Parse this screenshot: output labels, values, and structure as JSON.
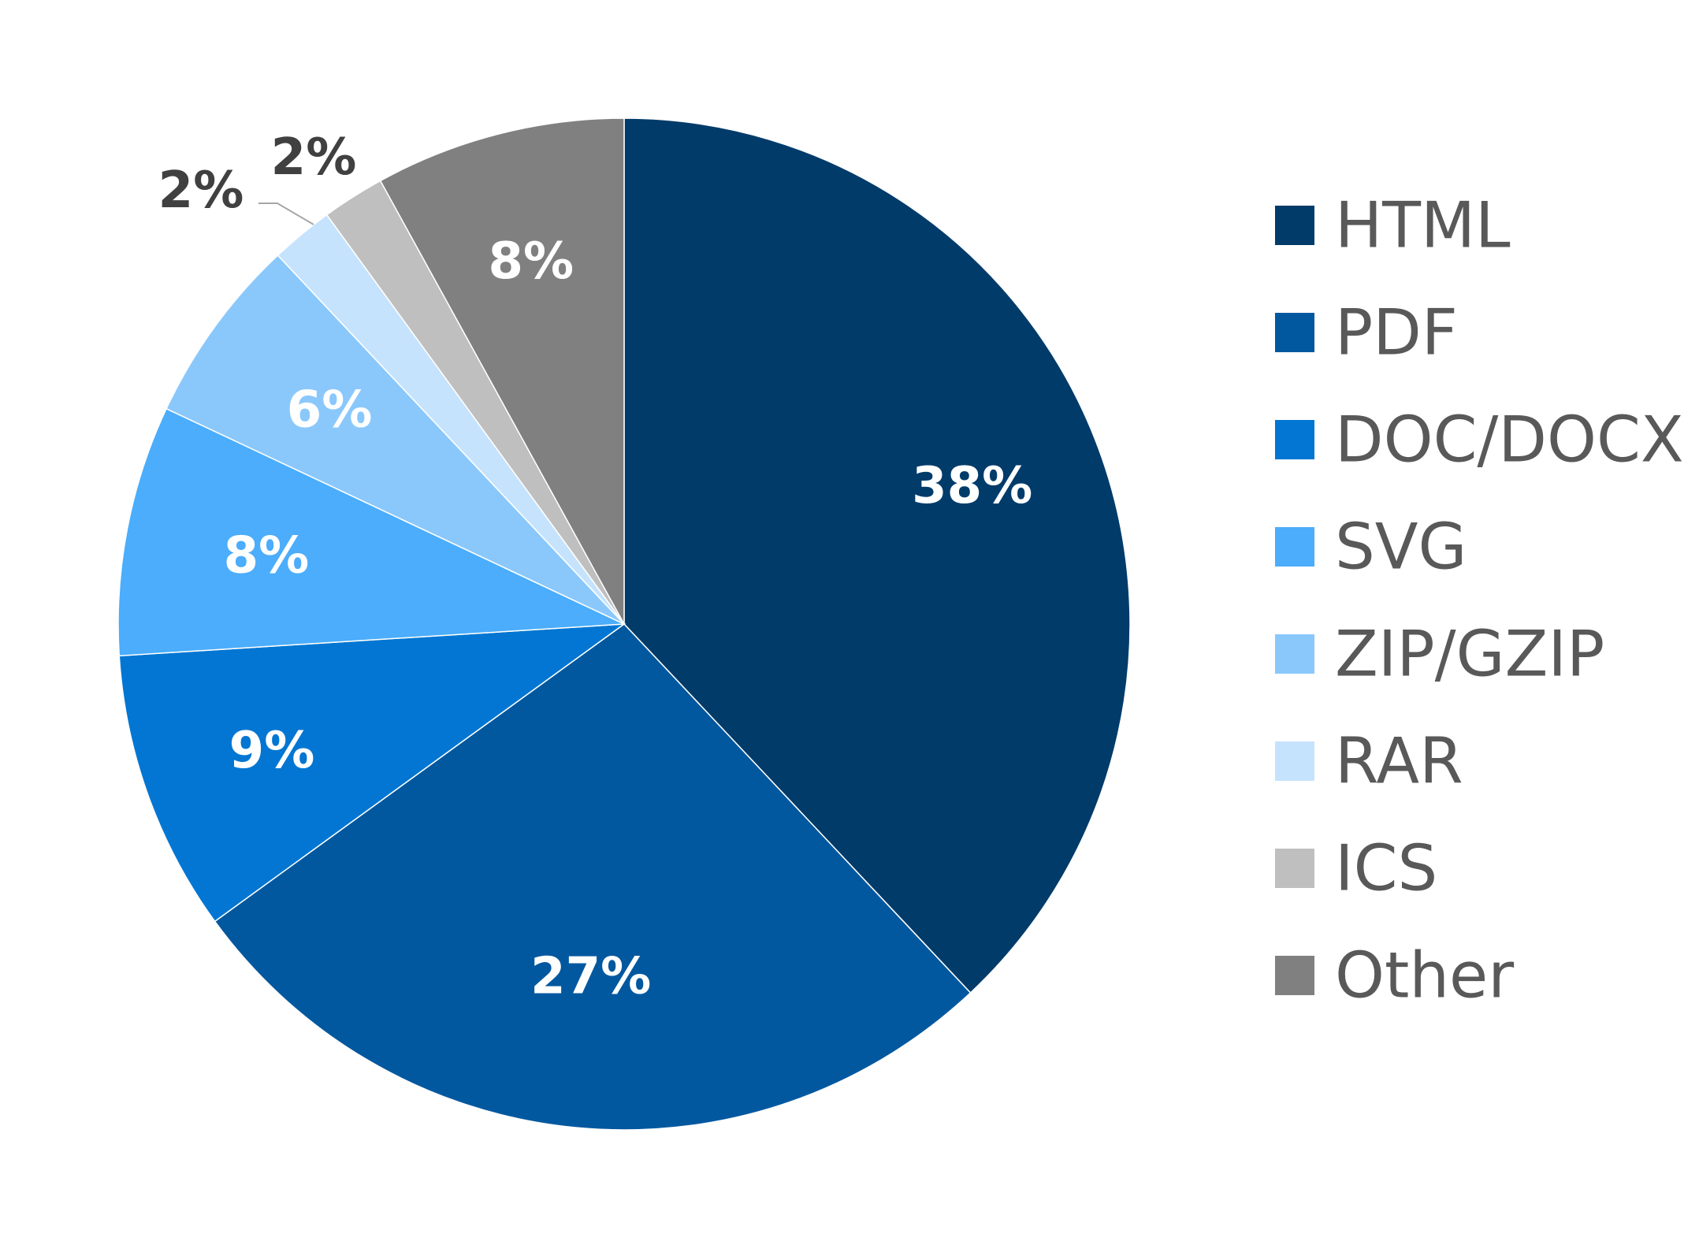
{
  "chart_data": {
    "type": "pie",
    "start_angle_deg": 0,
    "direction": "clockwise",
    "legend_position": "right",
    "slices": [
      {
        "category": "HTML",
        "value": 38,
        "label": "38%",
        "color": "#003B6A",
        "label_color": "#FFFFFF"
      },
      {
        "category": "PDF",
        "value": 27,
        "label": "27%",
        "color": "#02589F",
        "label_color": "#FFFFFF"
      },
      {
        "category": "DOC/DOCX",
        "value": 9,
        "label": "9%",
        "color": "#0276D2",
        "label_color": "#FFFFFF"
      },
      {
        "category": "SVG",
        "value": 8,
        "label": "8%",
        "color": "#4BADFB",
        "label_color": "#FFFFFF"
      },
      {
        "category": "ZIP/GZIP",
        "value": 6,
        "label": "6%",
        "color": "#8AC8FC",
        "label_color": "#FFFFFF"
      },
      {
        "category": "RAR",
        "value": 2,
        "label": "2%",
        "color": "#C6E3FD",
        "label_color": "#404040"
      },
      {
        "category": "ICS",
        "value": 2,
        "label": "2%",
        "color": "#BFBFBF",
        "label_color": "#404040"
      },
      {
        "category": "Other",
        "value": 8,
        "label": "8%",
        "color": "#808080",
        "label_color": "#FFFFFF"
      }
    ]
  }
}
